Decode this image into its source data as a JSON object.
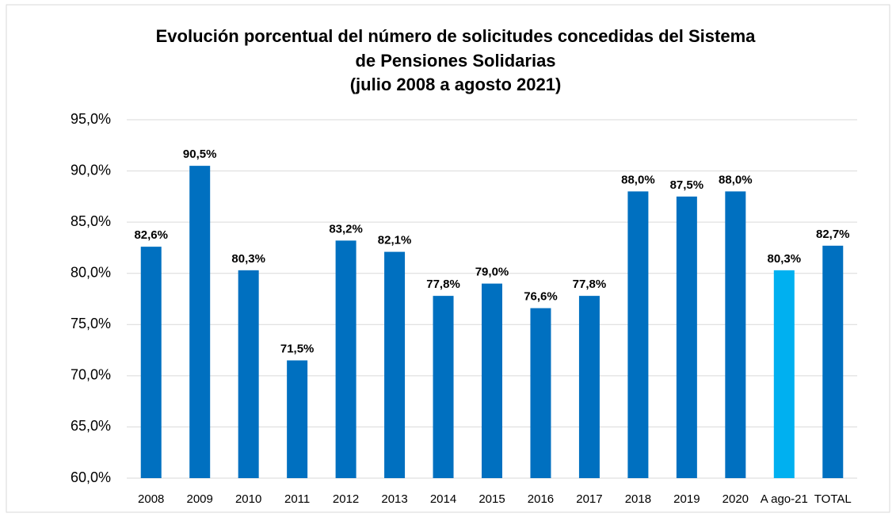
{
  "chart_data": {
    "type": "bar",
    "title": [
      "Evolución porcentual del número de solicitudes concedidas del Sistema",
      "de Pensiones Solidarias",
      "(julio 2008 a agosto 2021)"
    ],
    "categories": [
      "2008",
      "2009",
      "2010",
      "2011",
      "2012",
      "2013",
      "2014",
      "2015",
      "2016",
      "2017",
      "2018",
      "2019",
      "2020",
      "A ago-21",
      "TOTAL"
    ],
    "values": [
      82.6,
      90.5,
      80.3,
      71.5,
      83.2,
      82.1,
      77.8,
      79.0,
      76.6,
      77.8,
      88.0,
      87.5,
      88.0,
      80.3,
      82.7
    ],
    "value_labels": [
      "82,6%",
      "90,5%",
      "80,3%",
      "71,5%",
      "83,2%",
      "82,1%",
      "77,8%",
      "79,0%",
      "76,6%",
      "77,8%",
      "88,0%",
      "87,5%",
      "88,0%",
      "80,3%",
      "82,7%"
    ],
    "colors": [
      "#0070c0",
      "#0070c0",
      "#0070c0",
      "#0070c0",
      "#0070c0",
      "#0070c0",
      "#0070c0",
      "#0070c0",
      "#0070c0",
      "#0070c0",
      "#0070c0",
      "#0070c0",
      "#0070c0",
      "#00b0f0",
      "#0070c0"
    ],
    "ylim": [
      60,
      95
    ],
    "yticks": [
      {
        "value": 60,
        "label": "60,0%"
      },
      {
        "value": 65,
        "label": "65,0%"
      },
      {
        "value": 70,
        "label": "70,0%"
      },
      {
        "value": 75,
        "label": "75,0%"
      },
      {
        "value": 80,
        "label": "80,0%"
      },
      {
        "value": 85,
        "label": "85,0%"
      },
      {
        "value": 90,
        "label": "90,0%"
      },
      {
        "value": 95,
        "label": "95,0%"
      }
    ],
    "grid": true
  }
}
